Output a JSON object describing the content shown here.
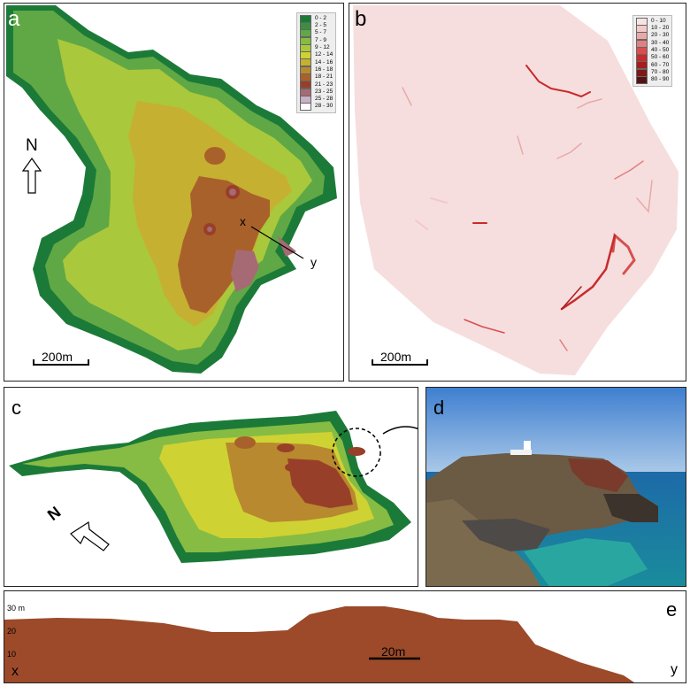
{
  "panel_a": {
    "label": "a",
    "north_label": "N",
    "scale_label": "200m",
    "point_x": "x",
    "point_y": "y",
    "legend": [
      {
        "label": "0 - 2",
        "color": "#1c7a38"
      },
      {
        "label": "2 - 5",
        "color": "#3a9040"
      },
      {
        "label": "5 - 7",
        "color": "#60a845"
      },
      {
        "label": "7 - 9",
        "color": "#86bc43"
      },
      {
        "label": "9 - 12",
        "color": "#aac83c"
      },
      {
        "label": "12 - 14",
        "color": "#cfd233"
      },
      {
        "label": "14 - 16",
        "color": "#c5b031"
      },
      {
        "label": "16 - 18",
        "color": "#b8892e"
      },
      {
        "label": "18 - 21",
        "color": "#a9612b"
      },
      {
        "label": "21 - 23",
        "color": "#983f2a"
      },
      {
        "label": "23 - 25",
        "color": "#a66a74"
      },
      {
        "label": "25 - 28",
        "color": "#c9b0c4"
      },
      {
        "label": "28 - 30",
        "color": "#ffffff"
      }
    ]
  },
  "panel_b": {
    "label": "b",
    "scale_label": "200m",
    "legend": [
      {
        "label": "0 - 10",
        "color": "#f6e4e4"
      },
      {
        "label": "10 - 20",
        "color": "#f2c9c9"
      },
      {
        "label": "20 - 30",
        "color": "#eaa8a8"
      },
      {
        "label": "30 - 40",
        "color": "#e27f7f"
      },
      {
        "label": "40 - 50",
        "color": "#d84f4f"
      },
      {
        "label": "50 - 60",
        "color": "#c92a2a"
      },
      {
        "label": "60 - 70",
        "color": "#a51d1d"
      },
      {
        "label": "70 - 80",
        "color": "#7e1717"
      },
      {
        "label": "80 - 90",
        "color": "#561212"
      }
    ]
  },
  "panel_c": {
    "label": "c",
    "north_label": "N"
  },
  "panel_d": {
    "label": "d"
  },
  "panel_e": {
    "label": "e",
    "y_ticks": [
      "30 m",
      "20",
      "10"
    ],
    "scale_label": "20m",
    "start_label": "x",
    "end_label": "y"
  }
}
